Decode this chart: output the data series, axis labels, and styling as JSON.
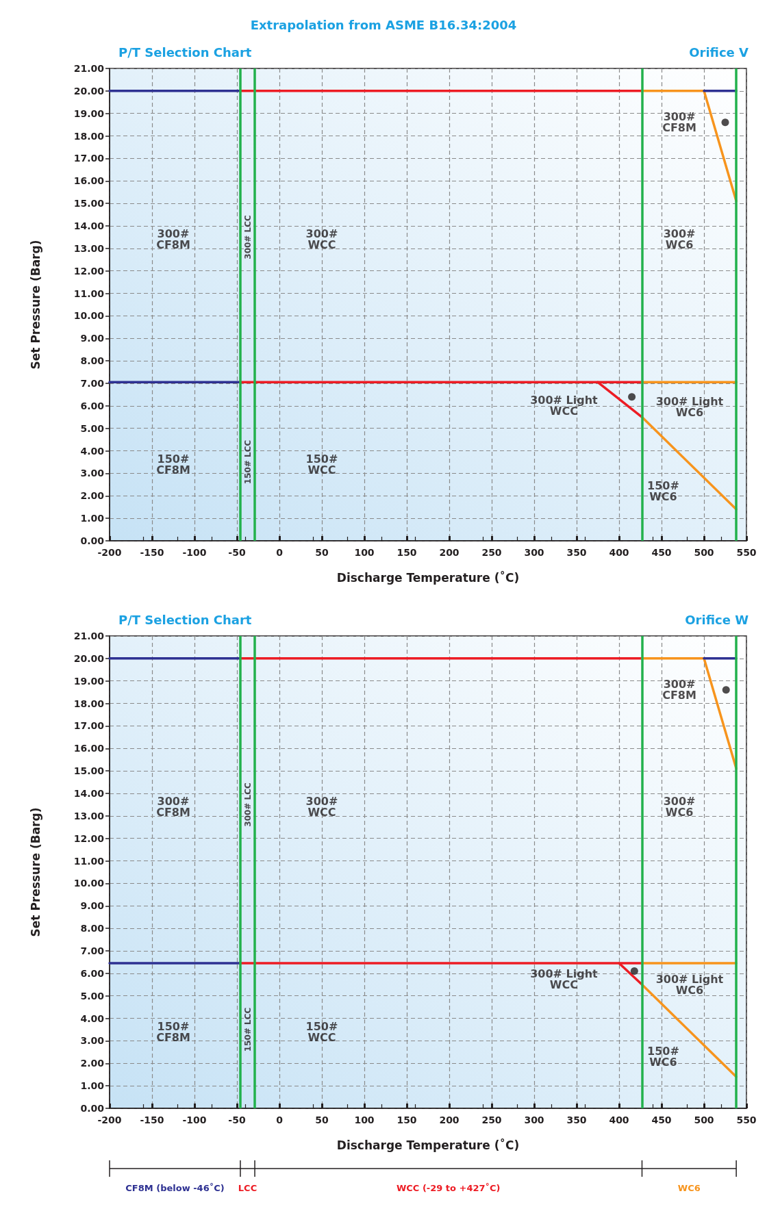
{
  "chart_data": [
    {
      "type": "line",
      "title": "Orifice V",
      "subtitle": "P/T Selection Chart",
      "xlabel": "Discharge Temperature (˚C)",
      "ylabel": "Set Pressure (Barg)",
      "xlim": [
        -200,
        550
      ],
      "xticks": [
        -200,
        -150,
        -100,
        -50,
        0,
        50,
        100,
        150,
        200,
        250,
        300,
        350,
        400,
        450,
        500,
        550
      ],
      "ylim": [
        0,
        21
      ],
      "yticks": [
        {
          "value": 0,
          "label": "0.00"
        },
        {
          "value": 1,
          "label": "1.00"
        },
        {
          "value": 2,
          "label": "2.00"
        },
        {
          "value": 3,
          "label": "3.00"
        },
        {
          "value": 4,
          "label": "4.00"
        },
        {
          "value": 5,
          "label": "5.00"
        },
        {
          "value": 6,
          "label": "6.00"
        },
        {
          "value": 7,
          "label": "7.00"
        },
        {
          "value": 8,
          "label": "8.00"
        },
        {
          "value": 9,
          "label": "9.00"
        },
        {
          "value": 10,
          "label": "10.00"
        },
        {
          "value": 11,
          "label": "11.00"
        },
        {
          "value": 12,
          "label": "12.00"
        },
        {
          "value": 13,
          "label": "13.00"
        },
        {
          "value": 14,
          "label": "14.00"
        },
        {
          "value": 15,
          "label": "15.00"
        },
        {
          "value": 16,
          "label": "16.00"
        },
        {
          "value": 17,
          "label": "17.00"
        },
        {
          "value": 18,
          "label": "18.00"
        },
        {
          "value": 19,
          "label": "19.00"
        },
        {
          "value": 20,
          "label": "20.00"
        },
        {
          "value": 21,
          "label": "21.00"
        }
      ],
      "grid": true,
      "marker": "none",
      "line_style": "solid",
      "series": [
        {
          "color": "#2e3192",
          "x": [
            -200,
            -46
          ],
          "values": [
            20,
            20
          ]
        },
        {
          "color": "#ed1c24",
          "x": [
            -46,
            427
          ],
          "values": [
            20,
            20
          ]
        },
        {
          "color": "#f7941d",
          "x": [
            427,
            500,
            538
          ],
          "values": [
            20,
            20,
            15.1
          ]
        },
        {
          "color": "#2e3192",
          "x": [
            500,
            538
          ],
          "values": [
            20,
            20
          ]
        },
        {
          "color": "#2e3192",
          "x": [
            -200,
            -46
          ],
          "values": [
            7.05,
            7.05
          ]
        },
        {
          "color": "#ed1c24",
          "x": [
            -46,
            427
          ],
          "values": [
            7.05,
            7.05
          ]
        },
        {
          "color": "#ed1c24",
          "x": [
            375,
            427
          ],
          "values": [
            7.05,
            5.5
          ]
        },
        {
          "color": "#f7941d",
          "x": [
            427,
            538
          ],
          "values": [
            7.05,
            7.05
          ]
        },
        {
          "color": "#f7941d",
          "x": [
            427,
            538
          ],
          "values": [
            5.5,
            1.4
          ]
        },
        {
          "type": "scatter",
          "marker": "circle",
          "color": "#231f20",
          "x": [
            525,
            415
          ],
          "values": [
            18.6,
            6.4
          ]
        }
      ],
      "ref_lines": [
        {
          "axis": "x",
          "value": -46,
          "color": "#22b14c"
        },
        {
          "axis": "x",
          "value": -29,
          "color": "#22b14c"
        },
        {
          "axis": "x",
          "value": 427,
          "color": "#22b14c"
        },
        {
          "axis": "x",
          "value": 538,
          "color": "#22b14c"
        }
      ],
      "annotations": [
        "Extrapolation from ASME B16.34:2004",
        "300# LCC",
        "150# LCC",
        "300#\nCF8M",
        "300#\nWCC",
        "300#\nWC6",
        "150#\nCF8M",
        "150#\nWCC",
        "300#\nCF8M",
        "300# Light\nWCC",
        "300# Light\nWC6",
        "150#\nWC6"
      ]
    },
    {
      "type": "line",
      "title": "Orifice W",
      "subtitle": "P/T Selection Chart",
      "xlabel": "Discharge Temperature (˚C)",
      "ylabel": "Set Pressure (Barg)",
      "xlim": [
        -200,
        550
      ],
      "xticks": [
        -200,
        -150,
        -100,
        -50,
        0,
        50,
        100,
        150,
        200,
        250,
        300,
        350,
        400,
        450,
        500,
        550
      ],
      "ylim": [
        0,
        21
      ],
      "yticks": [
        {
          "value": 0,
          "label": "0.00"
        },
        {
          "value": 1,
          "label": "1.00"
        },
        {
          "value": 2,
          "label": "2.00"
        },
        {
          "value": 3,
          "label": "3.00"
        },
        {
          "value": 4,
          "label": "4.00"
        },
        {
          "value": 5,
          "label": "5.00"
        },
        {
          "value": 6,
          "label": "6.00"
        },
        {
          "value": 7,
          "label": "7.00"
        },
        {
          "value": 8,
          "label": "8.00"
        },
        {
          "value": 9,
          "label": "9.00"
        },
        {
          "value": 10,
          "label": "10.00"
        },
        {
          "value": 11,
          "label": "11.00"
        },
        {
          "value": 12,
          "label": "12.00"
        },
        {
          "value": 13,
          "label": "13.00"
        },
        {
          "value": 14,
          "label": "14.00"
        },
        {
          "value": 15,
          "label": "15.00"
        },
        {
          "value": 16,
          "label": "16.00"
        },
        {
          "value": 17,
          "label": "17.00"
        },
        {
          "value": 18,
          "label": "18.00"
        },
        {
          "value": 19,
          "label": "19.00"
        },
        {
          "value": 20,
          "label": "20.00"
        },
        {
          "value": 21,
          "label": "21.00"
        }
      ],
      "grid": true,
      "marker": "none",
      "line_style": "solid",
      "series": [
        {
          "color": "#2e3192",
          "x": [
            -200,
            -46
          ],
          "values": [
            20,
            20
          ]
        },
        {
          "color": "#ed1c24",
          "x": [
            -46,
            427
          ],
          "values": [
            20,
            20
          ]
        },
        {
          "color": "#f7941d",
          "x": [
            427,
            500,
            538
          ],
          "values": [
            20,
            20,
            15.1
          ]
        },
        {
          "color": "#2e3192",
          "x": [
            500,
            538
          ],
          "values": [
            20,
            20
          ]
        },
        {
          "color": "#2e3192",
          "x": [
            -200,
            -46
          ],
          "values": [
            6.45,
            6.45
          ]
        },
        {
          "color": "#ed1c24",
          "x": [
            -46,
            427
          ],
          "values": [
            6.45,
            6.45
          ]
        },
        {
          "color": "#ed1c24",
          "x": [
            400,
            427
          ],
          "values": [
            6.45,
            5.5
          ]
        },
        {
          "color": "#f7941d",
          "x": [
            427,
            538
          ],
          "values": [
            6.45,
            6.45
          ]
        },
        {
          "color": "#f7941d",
          "x": [
            427,
            538
          ],
          "values": [
            5.5,
            1.4
          ]
        },
        {
          "type": "scatter",
          "marker": "circle",
          "color": "#231f20",
          "x": [
            526,
            418
          ],
          "values": [
            18.6,
            6.1
          ]
        }
      ],
      "ref_lines": [
        {
          "axis": "x",
          "value": -46,
          "color": "#22b14c"
        },
        {
          "axis": "x",
          "value": -29,
          "color": "#22b14c"
        },
        {
          "axis": "x",
          "value": 427,
          "color": "#22b14c"
        },
        {
          "axis": "x",
          "value": 538,
          "color": "#22b14c"
        }
      ],
      "annotations": [
        "CF8M (below -46˚C)",
        "LCC",
        "WCC (-29 to +427˚C)",
        "WC6",
        "300# LCC",
        "150# LCC",
        "300#\nCF8M",
        "300#\nWCC",
        "300#\nWC6",
        "150#\nCF8M",
        "150#\nWCC",
        "300#\nCF8M",
        "300# Light\nWCC",
        "300# Light\nWC6",
        "150#\nWC6"
      ]
    }
  ]
}
